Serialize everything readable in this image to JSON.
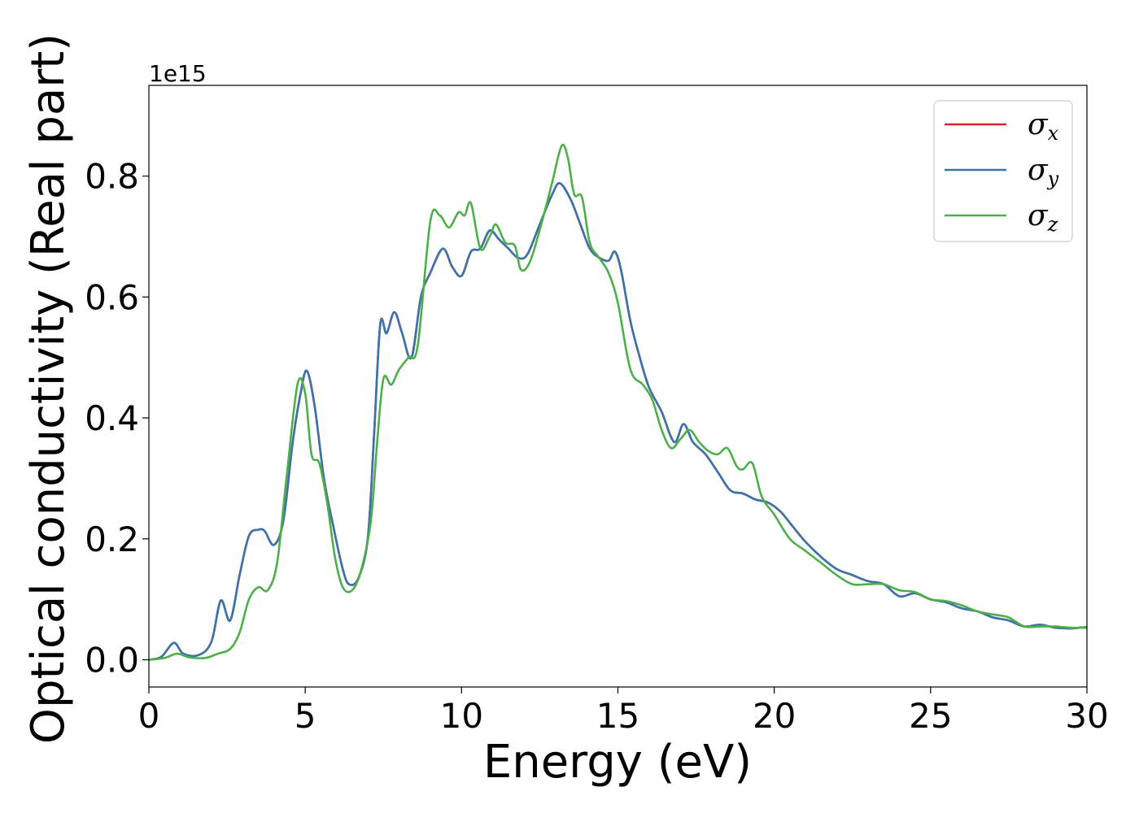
{
  "chart_data": {
    "type": "line",
    "xlabel": "Energy (eV)",
    "ylabel": "Optical conductivity (Real part)",
    "y_offset_text": "1e15",
    "xlim": [
      0,
      30
    ],
    "ylim": [
      -0.045,
      0.95
    ],
    "x_ticks": [
      0,
      5,
      10,
      15,
      20,
      25,
      30
    ],
    "x_tick_labels": [
      "0",
      "5",
      "10",
      "15",
      "20",
      "25",
      "30"
    ],
    "y_ticks": [
      0.0,
      0.2,
      0.4,
      0.6,
      0.8
    ],
    "y_tick_labels": [
      "0.0",
      "0.2",
      "0.4",
      "0.6",
      "0.8"
    ],
    "grid": false,
    "legend_position": "top-right",
    "series": [
      {
        "name": "σx",
        "symbol": "σ",
        "subscript": "x",
        "color": "#d62728",
        "x": [
          0,
          0.4,
          0.8,
          1.1,
          1.6,
          2.0,
          2.3,
          2.6,
          2.9,
          3.2,
          3.5,
          3.7,
          4.0,
          4.3,
          4.6,
          4.85,
          5.05,
          5.3,
          5.6,
          5.9,
          6.2,
          6.4,
          6.7,
          7.0,
          7.2,
          7.4,
          7.6,
          7.85,
          8.1,
          8.4,
          8.7,
          9.0,
          9.4,
          9.7,
          10.0,
          10.3,
          10.6,
          10.9,
          11.2,
          11.5,
          11.8,
          12.1,
          12.5,
          12.9,
          13.15,
          13.5,
          13.8,
          14.1,
          14.4,
          14.7,
          14.9,
          15.1,
          15.4,
          15.7,
          16.0,
          16.4,
          16.8,
          17.1,
          17.4,
          17.8,
          18.2,
          18.6,
          19.0,
          19.4,
          19.8,
          20.2,
          20.6,
          21.0,
          21.5,
          22.0,
          22.5,
          23.0,
          23.5,
          24.0,
          24.5,
          25.0,
          25.5,
          26.0,
          26.5,
          27.0,
          27.5,
          28.0,
          28.5,
          29.0,
          29.5,
          30.0
        ],
        "y": [
          0.0,
          0.005,
          0.028,
          0.01,
          0.008,
          0.03,
          0.098,
          0.065,
          0.14,
          0.205,
          0.215,
          0.213,
          0.19,
          0.23,
          0.36,
          0.44,
          0.478,
          0.42,
          0.3,
          0.22,
          0.15,
          0.125,
          0.135,
          0.2,
          0.37,
          0.555,
          0.54,
          0.575,
          0.54,
          0.5,
          0.6,
          0.64,
          0.68,
          0.65,
          0.635,
          0.675,
          0.68,
          0.71,
          0.695,
          0.68,
          0.665,
          0.67,
          0.72,
          0.77,
          0.788,
          0.76,
          0.72,
          0.68,
          0.665,
          0.66,
          0.675,
          0.645,
          0.56,
          0.5,
          0.45,
          0.41,
          0.36,
          0.39,
          0.36,
          0.34,
          0.31,
          0.28,
          0.275,
          0.265,
          0.26,
          0.245,
          0.22,
          0.195,
          0.17,
          0.15,
          0.14,
          0.13,
          0.125,
          0.105,
          0.11,
          0.1,
          0.095,
          0.085,
          0.08,
          0.07,
          0.065,
          0.055,
          0.058,
          0.053,
          0.052,
          0.054
        ]
      },
      {
        "name": "σy",
        "symbol": "σ",
        "subscript": "y",
        "color": "#3a74ad",
        "x": [
          0,
          0.4,
          0.8,
          1.1,
          1.6,
          2.0,
          2.3,
          2.6,
          2.9,
          3.2,
          3.5,
          3.7,
          4.0,
          4.3,
          4.6,
          4.85,
          5.05,
          5.3,
          5.6,
          5.9,
          6.2,
          6.4,
          6.7,
          7.0,
          7.2,
          7.4,
          7.6,
          7.85,
          8.1,
          8.4,
          8.7,
          9.0,
          9.4,
          9.7,
          10.0,
          10.3,
          10.6,
          10.9,
          11.2,
          11.5,
          11.8,
          12.1,
          12.5,
          12.9,
          13.15,
          13.5,
          13.8,
          14.1,
          14.4,
          14.7,
          14.9,
          15.1,
          15.4,
          15.7,
          16.0,
          16.4,
          16.8,
          17.1,
          17.4,
          17.8,
          18.2,
          18.6,
          19.0,
          19.4,
          19.8,
          20.2,
          20.6,
          21.0,
          21.5,
          22.0,
          22.5,
          23.0,
          23.5,
          24.0,
          24.5,
          25.0,
          25.5,
          26.0,
          26.5,
          27.0,
          27.5,
          28.0,
          28.5,
          29.0,
          29.5,
          30.0
        ],
        "y": [
          0.0,
          0.005,
          0.028,
          0.01,
          0.008,
          0.03,
          0.098,
          0.065,
          0.14,
          0.205,
          0.215,
          0.213,
          0.19,
          0.23,
          0.36,
          0.44,
          0.478,
          0.42,
          0.3,
          0.22,
          0.15,
          0.125,
          0.135,
          0.2,
          0.37,
          0.555,
          0.54,
          0.575,
          0.54,
          0.5,
          0.6,
          0.64,
          0.68,
          0.65,
          0.635,
          0.675,
          0.68,
          0.71,
          0.695,
          0.68,
          0.665,
          0.67,
          0.72,
          0.77,
          0.788,
          0.76,
          0.72,
          0.68,
          0.665,
          0.66,
          0.675,
          0.645,
          0.56,
          0.5,
          0.45,
          0.41,
          0.36,
          0.39,
          0.36,
          0.34,
          0.31,
          0.28,
          0.275,
          0.265,
          0.26,
          0.245,
          0.22,
          0.195,
          0.17,
          0.15,
          0.14,
          0.13,
          0.125,
          0.105,
          0.11,
          0.1,
          0.095,
          0.085,
          0.08,
          0.07,
          0.065,
          0.055,
          0.058,
          0.053,
          0.052,
          0.054
        ]
      },
      {
        "name": "σz",
        "symbol": "σ",
        "subscript": "z",
        "color": "#4daf4a",
        "x": [
          0,
          0.5,
          0.9,
          1.3,
          1.8,
          2.2,
          2.6,
          2.9,
          3.2,
          3.5,
          3.8,
          4.1,
          4.4,
          4.75,
          5.0,
          5.2,
          5.45,
          5.7,
          5.95,
          6.2,
          6.5,
          6.8,
          7.1,
          7.3,
          7.5,
          7.75,
          8.0,
          8.3,
          8.6,
          9.0,
          9.3,
          9.6,
          9.9,
          10.1,
          10.3,
          10.6,
          10.9,
          11.1,
          11.4,
          11.7,
          11.9,
          12.2,
          12.6,
          12.9,
          13.2,
          13.4,
          13.6,
          13.85,
          14.1,
          14.4,
          14.7,
          15.0,
          15.4,
          15.8,
          16.1,
          16.4,
          16.7,
          17.0,
          17.3,
          17.6,
          17.9,
          18.2,
          18.5,
          18.8,
          19.0,
          19.3,
          19.6,
          20.0,
          20.5,
          21.0,
          21.5,
          22.0,
          22.5,
          23.0,
          23.5,
          24.0,
          24.5,
          25.0,
          25.5,
          26.0,
          26.5,
          27.0,
          27.5,
          28.0,
          28.5,
          29.0,
          29.5,
          30.0
        ],
        "y": [
          0.0,
          0.003,
          0.01,
          0.004,
          0.003,
          0.01,
          0.018,
          0.045,
          0.1,
          0.12,
          0.115,
          0.16,
          0.3,
          0.455,
          0.44,
          0.34,
          0.325,
          0.26,
          0.17,
          0.12,
          0.115,
          0.15,
          0.23,
          0.36,
          0.465,
          0.455,
          0.48,
          0.5,
          0.52,
          0.725,
          0.735,
          0.715,
          0.74,
          0.735,
          0.755,
          0.68,
          0.7,
          0.72,
          0.69,
          0.685,
          0.645,
          0.66,
          0.73,
          0.79,
          0.85,
          0.83,
          0.77,
          0.765,
          0.69,
          0.665,
          0.64,
          0.59,
          0.48,
          0.455,
          0.43,
          0.38,
          0.35,
          0.365,
          0.38,
          0.36,
          0.345,
          0.34,
          0.35,
          0.32,
          0.315,
          0.325,
          0.27,
          0.24,
          0.2,
          0.18,
          0.16,
          0.14,
          0.125,
          0.125,
          0.125,
          0.115,
          0.112,
          0.1,
          0.097,
          0.09,
          0.08,
          0.075,
          0.07,
          0.055,
          0.055,
          0.055,
          0.053,
          0.053
        ]
      }
    ]
  }
}
